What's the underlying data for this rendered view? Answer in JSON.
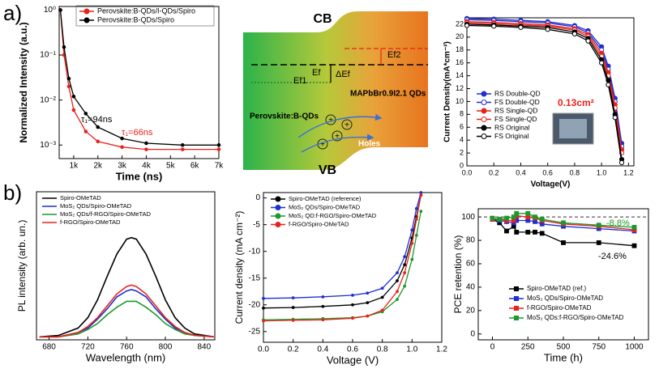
{
  "panel_labels": [
    "a)",
    "b)"
  ],
  "diagram": {
    "cb": "CB",
    "vb": "VB",
    "ef2": "Ef2",
    "ef": "Ef",
    "ef1": "Ef1",
    "delta_ef": "ΔEf",
    "qds": "MAPbBr0.9I2.1 QDs",
    "perovskite": "Perovskite:B-QDs",
    "holes": "Holes"
  },
  "chart_data": [
    {
      "type": "line",
      "log_y": true,
      "marker": "circle",
      "x": [
        450,
        600,
        800,
        1000,
        1500,
        2000,
        3000,
        4000,
        5500,
        7000
      ],
      "series": [
        {
          "name": "Perovskite:B-QDs/I-QDs/Spiro",
          "color": "#e8231c",
          "values": [
            1,
            0.1,
            0.02,
            0.006,
            0.002,
            0.0012,
            0.0009,
            0.0008,
            0.0008,
            0.0008
          ]
        },
        {
          "name": "Perovskite:B-QDs/Spiro",
          "color": "#000000",
          "values": [
            1,
            0.15,
            0.03,
            0.012,
            0.005,
            0.0025,
            0.0014,
            0.0011,
            0.001,
            0.001
          ]
        }
      ],
      "xlim": [
        400,
        7000
      ],
      "ylim": [
        0.0005,
        1.2
      ],
      "xticks": [
        {
          "value": 1000,
          "label": "1k"
        },
        {
          "value": 2000,
          "label": "2k"
        },
        {
          "value": 3000,
          "label": "3k"
        },
        {
          "value": 4000,
          "label": "4k"
        },
        {
          "value": 5000,
          "label": "5k"
        },
        {
          "value": 6000,
          "label": "6k"
        },
        {
          "value": 7000,
          "label": "7k"
        }
      ],
      "yticks": [
        {
          "value": 0.001,
          "label": "10⁻³"
        },
        {
          "value": 0.01,
          "label": "10⁻²"
        },
        {
          "value": 0.1,
          "label": "10⁻¹"
        },
        {
          "value": 1,
          "label": "10⁰"
        }
      ],
      "x_label": "Time (ns)",
      "y_label": "Normalized Intensity (a.u.)",
      "annotations": [
        {
          "text": "τ₁=94ns",
          "color": "#000000"
        },
        {
          "text": "τ₁=66ns",
          "color": "#e8231c"
        }
      ]
    },
    {
      "type": "line",
      "marker": "circle",
      "x": [
        0,
        0.2,
        0.4,
        0.6,
        0.8,
        0.9,
        1.0,
        1.05,
        1.1,
        1.15
      ],
      "series": [
        {
          "name": "RS Double-QD",
          "color": "#1f2fd0",
          "open": false,
          "values": [
            22.9,
            22.8,
            22.6,
            22.4,
            21.8,
            21,
            18.5,
            15.5,
            10.5,
            3.5
          ]
        },
        {
          "name": "FS Double-QD",
          "color": "#1f2fd0",
          "open": true,
          "values": [
            22.7,
            22.6,
            22.4,
            22.2,
            21.6,
            20.7,
            18,
            15,
            10,
            3
          ]
        },
        {
          "name": "RS Single-QD",
          "color": "#e8231c",
          "open": false,
          "values": [
            22.4,
            22.3,
            22.1,
            21.9,
            21.3,
            20.4,
            17.5,
            14.5,
            9.5,
            2.5
          ]
        },
        {
          "name": "FS Single-QD",
          "color": "#e8231c",
          "open": true,
          "values": [
            22.2,
            22.1,
            21.9,
            21.7,
            21.1,
            20.1,
            17,
            14,
            9,
            2
          ]
        },
        {
          "name": "RS Original",
          "color": "#000000",
          "open": false,
          "values": [
            22.0,
            21.9,
            21.7,
            21.5,
            20.8,
            19.8,
            16.5,
            13.3,
            8,
            1
          ]
        },
        {
          "name": "FS Original",
          "color": "#000000",
          "open": true,
          "values": [
            21.8,
            21.7,
            21.5,
            21.2,
            20.5,
            19.4,
            16,
            12.6,
            7.5,
            0.5
          ]
        }
      ],
      "xlim": [
        0,
        1.24
      ],
      "ylim": [
        0,
        23
      ],
      "xticks": [
        {
          "value": 0,
          "label": "0.0"
        },
        {
          "value": 0.2,
          "label": "0.2"
        },
        {
          "value": 0.4,
          "label": "0.4"
        },
        {
          "value": 0.6,
          "label": "0.6"
        },
        {
          "value": 0.8,
          "label": "0.8"
        },
        {
          "value": 1,
          "label": "1.0"
        },
        {
          "value": 1.2,
          "label": "1.2"
        }
      ],
      "yticks": [
        0,
        2,
        4,
        6,
        8,
        10,
        12,
        14,
        16,
        18,
        20,
        22
      ],
      "x_label": "Voltage(V)",
      "y_label": "Current Density(mA*cm⁻²)",
      "annotations": [
        {
          "text": "0.13cm²",
          "color": "#e8231c"
        }
      ]
    },
    {
      "type": "line",
      "x": [
        670,
        690,
        710,
        720,
        730,
        740,
        750,
        760,
        765,
        770,
        780,
        790,
        800,
        810,
        820,
        830,
        850
      ],
      "series": [
        {
          "name": "Spiro-OMeTAD",
          "color": "#000000",
          "values": [
            0.02,
            0.03,
            0.08,
            0.15,
            0.27,
            0.43,
            0.58,
            0.68,
            0.69,
            0.68,
            0.58,
            0.43,
            0.27,
            0.15,
            0.08,
            0.04,
            0.02
          ]
        },
        {
          "name": "MoS₂ QDs/Spiro-OMeTAD",
          "color": "#1f2fd0",
          "values": [
            0.02,
            0.02,
            0.05,
            0.08,
            0.14,
            0.21,
            0.29,
            0.33,
            0.34,
            0.33,
            0.29,
            0.21,
            0.14,
            0.08,
            0.05,
            0.03,
            0.02
          ]
        },
        {
          "name": "MoS₂ QDs/f-RGO/Spiro-OMeTAD",
          "color": "#1a9a2a",
          "values": [
            0.02,
            0.02,
            0.04,
            0.07,
            0.11,
            0.17,
            0.22,
            0.26,
            0.26,
            0.26,
            0.22,
            0.17,
            0.11,
            0.07,
            0.04,
            0.03,
            0.02
          ]
        },
        {
          "name": "f-RGO/Spiro-OMeTAD",
          "color": "#e8231c",
          "values": [
            0.02,
            0.02,
            0.05,
            0.09,
            0.15,
            0.23,
            0.31,
            0.36,
            0.37,
            0.36,
            0.31,
            0.23,
            0.15,
            0.09,
            0.05,
            0.03,
            0.02
          ]
        }
      ],
      "xlim": [
        667,
        851
      ],
      "ylim": [
        0,
        1
      ],
      "xticks": [
        680,
        720,
        760,
        800,
        840
      ],
      "x_label": "Wavelength (nm)",
      "y_label": "PL intensity (arb. un.)"
    },
    {
      "type": "line",
      "marker": "circle",
      "x": [
        0,
        0.2,
        0.4,
        0.6,
        0.7,
        0.8,
        0.9,
        0.95,
        1.0,
        1.03,
        1.06
      ],
      "series": [
        {
          "name": "Spiro-OMeTAD (reference)",
          "color": "#000000",
          "values": [
            -20.6,
            -20.5,
            -20.3,
            -20.0,
            -19.6,
            -18.6,
            -15.5,
            -12.5,
            -7.5,
            -3.5,
            0.5
          ]
        },
        {
          "name": "MoS₂ QDs/Spiro-OMeTAD",
          "color": "#1f2fd0",
          "values": [
            -18.8,
            -18.7,
            -18.5,
            -18.2,
            -17.8,
            -16.9,
            -14,
            -11,
            -6,
            -2,
            1
          ]
        },
        {
          "name": "MoS₂ QD:f-RGO/Spiro-OMeTAD",
          "color": "#1a9a2a",
          "values": [
            -22.8,
            -22.7,
            -22.6,
            -22.4,
            -22.1,
            -21.3,
            -19,
            -16.5,
            -11.5,
            -7,
            -2.5
          ]
        },
        {
          "name": "f-RGO/Spiro-OMeTAD",
          "color": "#e8231c",
          "values": [
            -23.0,
            -22.9,
            -22.8,
            -22.5,
            -22.1,
            -21,
            -17.5,
            -14,
            -8.5,
            -4,
            0.5
          ]
        }
      ],
      "xlim": [
        0,
        1.2
      ],
      "ylim": [
        -27,
        1
      ],
      "xticks": [
        {
          "value": 0,
          "label": "0.0"
        },
        {
          "value": 0.2,
          "label": "0.2"
        },
        {
          "value": 0.4,
          "label": "0.4"
        },
        {
          "value": 0.6,
          "label": "0.6"
        },
        {
          "value": 0.8,
          "label": "0.8"
        },
        {
          "value": 1,
          "label": "1.0"
        },
        {
          "value": 1.2,
          "label": "1.2"
        }
      ],
      "yticks": [
        -25,
        -20,
        -15,
        -10,
        -5,
        0
      ],
      "x_label": "Voltage (V)",
      "y_label": "Current density (mA cm⁻²)"
    },
    {
      "type": "line",
      "marker": "square",
      "reference_line": 100,
      "x": [
        0,
        50,
        100,
        150,
        170,
        250,
        300,
        350,
        500,
        750,
        1000
      ],
      "series": [
        {
          "name": "Spiro-OMeTAD (ref.)",
          "color": "#000000",
          "values": [
            98,
            95,
            88,
            92,
            87,
            87,
            87,
            86,
            78,
            78,
            75.4
          ]
        },
        {
          "name": "MoS₂ QDs/Spiro-OMeTAD",
          "color": "#1f2fd0",
          "values": [
            98,
            97,
            96,
            95,
            97,
            97,
            96,
            94,
            92,
            90,
            88
          ]
        },
        {
          "name": "f-RGO/Spiro-OMeTAD",
          "color": "#e8231c",
          "values": [
            98,
            98,
            97,
            97,
            101,
            100,
            99,
            97,
            94,
            92,
            89
          ]
        },
        {
          "name": "MoS₂ QDs:f-RGO/Spiro-OMeTAD",
          "color": "#1a9a2a",
          "values": [
            99,
            98,
            99,
            100,
            103,
            103,
            100,
            98,
            95,
            93,
            91.2
          ]
        }
      ],
      "xlim": [
        -100,
        1100
      ],
      "ylim": [
        -5,
        107
      ],
      "xticks": [
        0,
        250,
        500,
        750,
        1000
      ],
      "yticks": [
        0,
        20,
        40,
        60,
        80,
        100
      ],
      "x_label": "Time (h)",
      "y_label": "PCE retention (%)",
      "annotations": [
        {
          "text": "-8.8%",
          "color": "#1a9a2a"
        },
        {
          "text": "-24.6%",
          "color": "#000000"
        }
      ]
    }
  ]
}
